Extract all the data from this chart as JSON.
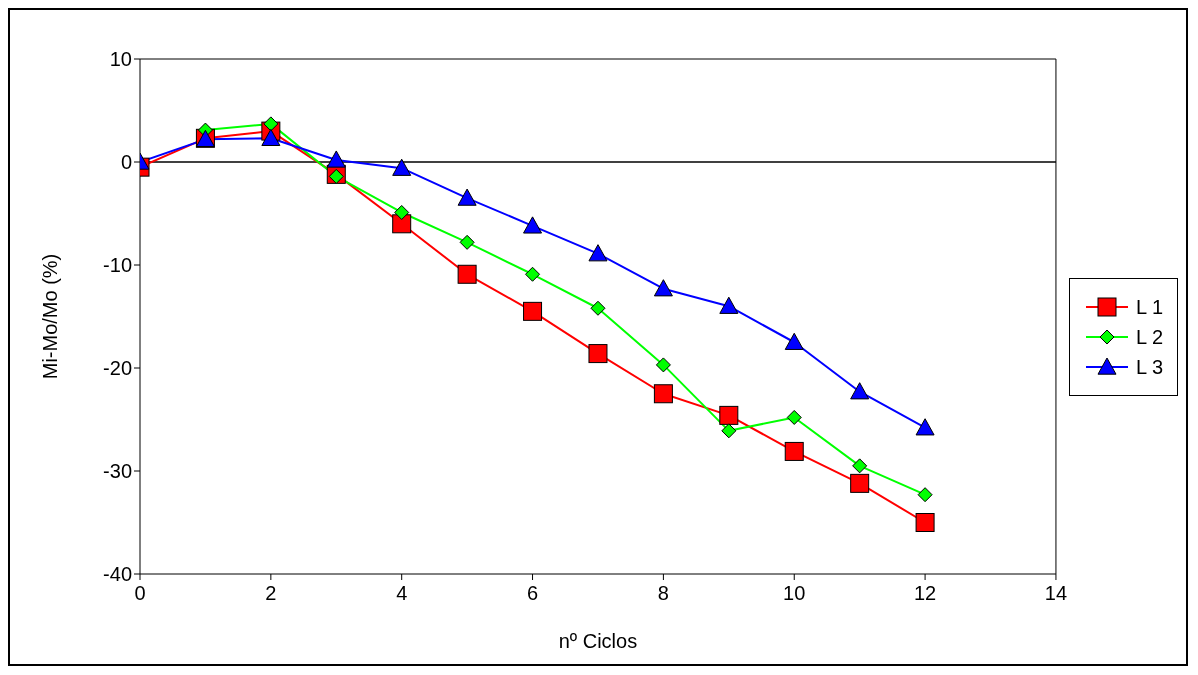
{
  "chart_data": {
    "type": "line",
    "xlabel": "nº Ciclos",
    "ylabel": "Mi-Mo/Mo (%)",
    "x": [
      0,
      1,
      2,
      3,
      4,
      5,
      6,
      7,
      8,
      9,
      10,
      11,
      12
    ],
    "series": [
      {
        "name": "L 1",
        "color": "#ff0000",
        "marker": "square",
        "values": [
          -0.5,
          2.3,
          3.0,
          -1.2,
          -6.0,
          -10.9,
          -14.5,
          -18.6,
          -22.5,
          -24.6,
          -28.1,
          -31.2,
          -35.0
        ]
      },
      {
        "name": "L 2",
        "color": "#00ff00",
        "marker": "diamond",
        "values": [
          null,
          3.1,
          3.7,
          -1.4,
          -4.9,
          -7.8,
          -10.9,
          -14.2,
          -19.7,
          -26.1,
          -24.8,
          -29.5,
          -32.3
        ]
      },
      {
        "name": "L 3",
        "color": "#0000ff",
        "marker": "triangle",
        "values": [
          0,
          2.2,
          2.3,
          0.2,
          -0.6,
          -3.5,
          -6.2,
          -8.9,
          -12.3,
          -14.0,
          -17.5,
          -22.3,
          -25.8
        ]
      }
    ],
    "xlim": [
      0,
      14
    ],
    "xticks": [
      0,
      2,
      4,
      6,
      8,
      10,
      12,
      14
    ],
    "ylim": [
      -40,
      10
    ],
    "yticks": [
      -40,
      -30,
      -20,
      -10,
      0,
      10
    ],
    "ref_lines": [
      {
        "axis": "y",
        "value": 0,
        "color": "#000000"
      }
    ],
    "grid": false,
    "legend": "right",
    "line_style": "solid"
  }
}
